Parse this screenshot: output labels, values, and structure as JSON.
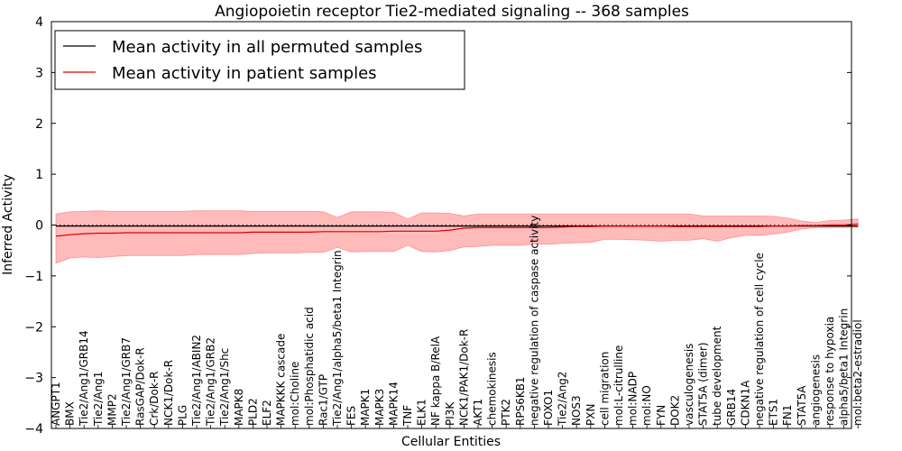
{
  "chart_data": {
    "type": "line",
    "title": "Angiopoietin receptor Tie2-mediated signaling -- 368 samples",
    "xlabel": "Cellular Entities",
    "ylabel": "Inferred Activity",
    "ylim": [
      -4,
      4
    ],
    "yticks": [
      "−4",
      "−3",
      "−2",
      "−1",
      "0",
      "1",
      "2",
      "3",
      "4"
    ],
    "grid": false,
    "legend_position": "top-left",
    "categories": [
      "ANGPT1",
      "BMX",
      "Tie2/Ang1/GRB14",
      "Tie2/Ang1",
      "MMP2",
      "Tie2/Ang1/GRB7",
      "RasGAP/Dok-R",
      "Crk/Dok-R",
      "NCK1/Dok-R",
      "PLG",
      "Tie2/Ang1/ABIN2",
      "Tie2/Ang1/GRB2",
      "Tie2/Ang1/Shc",
      "MAPK8",
      "PLD2",
      "ELF2",
      "MAPKKK cascade",
      "mol:Choline",
      "mol:Phosphatidic acid",
      "Rac1/GTP",
      "Tie2/Ang1/alpha5/beta1 Integrin",
      "FES",
      "MAPK1",
      "MAPK3",
      "MAPK14",
      "TNF",
      "ELK1",
      "NF kappa B/RelA",
      "PI3K",
      "NCK1/PAK1/Dok-R",
      "AKT1",
      "chemokinesis",
      "PTK2",
      "RPS6KB1",
      "negative regulation of caspase activity",
      "FOXO1",
      "Tie2/Ang2",
      "NOS3",
      "PXN",
      "cell migration",
      "mol:L-citrulline",
      "mol:NADP",
      "mol:NO",
      "FYN",
      "DOK2",
      "vasculogenesis",
      "STAT5A (dimer)",
      "tube development",
      "GRB14",
      "CDKN1A",
      "negative regulation of cell cycle",
      "ETS1",
      "FN1",
      "STAT5A",
      "angiogenesis",
      "response to hypoxia",
      "alpha5/beta1 Integrin",
      "mol:beta2-estradiol"
    ],
    "series": [
      {
        "name": "Mean activity in all permuted samples",
        "color": "#000000",
        "values": [
          -0.02,
          -0.02,
          -0.02,
          -0.02,
          -0.02,
          -0.02,
          -0.02,
          -0.02,
          -0.02,
          -0.02,
          -0.02,
          -0.02,
          -0.02,
          -0.02,
          -0.02,
          -0.02,
          -0.02,
          -0.02,
          -0.02,
          -0.02,
          -0.02,
          -0.02,
          -0.02,
          -0.02,
          -0.02,
          -0.02,
          -0.02,
          -0.02,
          -0.02,
          -0.02,
          -0.02,
          -0.02,
          -0.02,
          -0.02,
          -0.02,
          -0.02,
          -0.02,
          -0.02,
          -0.02,
          -0.02,
          -0.02,
          -0.02,
          -0.02,
          -0.02,
          -0.02,
          -0.02,
          -0.02,
          -0.02,
          -0.02,
          -0.02,
          -0.02,
          -0.02,
          -0.02,
          -0.02,
          -0.02,
          -0.02,
          -0.02,
          -0.02
        ]
      },
      {
        "name": "Mean activity in patient samples",
        "color": "#dd0000",
        "band_color": "#ff6666",
        "values": [
          -0.22,
          -0.19,
          -0.17,
          -0.16,
          -0.16,
          -0.15,
          -0.15,
          -0.15,
          -0.15,
          -0.15,
          -0.15,
          -0.15,
          -0.15,
          -0.15,
          -0.14,
          -0.14,
          -0.14,
          -0.14,
          -0.14,
          -0.13,
          -0.13,
          -0.13,
          -0.13,
          -0.13,
          -0.12,
          -0.12,
          -0.12,
          -0.12,
          -0.1,
          -0.06,
          -0.05,
          -0.05,
          -0.05,
          -0.05,
          -0.05,
          -0.05,
          -0.04,
          -0.03,
          -0.03,
          -0.02,
          -0.02,
          -0.02,
          -0.02,
          -0.02,
          -0.03,
          -0.03,
          -0.03,
          -0.03,
          -0.03,
          -0.03,
          -0.03,
          -0.02,
          -0.02,
          -0.01,
          -0.01,
          0.0,
          0.0,
          0.02
        ],
        "upper": [
          0.22,
          0.26,
          0.27,
          0.28,
          0.27,
          0.27,
          0.27,
          0.27,
          0.27,
          0.27,
          0.28,
          0.28,
          0.28,
          0.28,
          0.27,
          0.27,
          0.27,
          0.27,
          0.27,
          0.26,
          0.15,
          0.26,
          0.26,
          0.26,
          0.25,
          0.12,
          0.24,
          0.24,
          0.23,
          0.18,
          0.22,
          0.22,
          0.22,
          0.22,
          0.22,
          0.22,
          0.22,
          0.22,
          0.22,
          0.22,
          0.22,
          0.22,
          0.22,
          0.22,
          0.22,
          0.22,
          0.18,
          0.18,
          0.18,
          0.18,
          0.18,
          0.17,
          0.14,
          0.08,
          0.05,
          0.09,
          0.1,
          0.12
        ],
        "lower": [
          -0.75,
          -0.65,
          -0.63,
          -0.64,
          -0.62,
          -0.6,
          -0.6,
          -0.6,
          -0.6,
          -0.6,
          -0.58,
          -0.58,
          -0.58,
          -0.58,
          -0.56,
          -0.55,
          -0.55,
          -0.55,
          -0.54,
          -0.54,
          -0.44,
          -0.53,
          -0.52,
          -0.52,
          -0.52,
          -0.4,
          -0.52,
          -0.53,
          -0.5,
          -0.43,
          -0.42,
          -0.4,
          -0.4,
          -0.4,
          -0.38,
          -0.38,
          -0.36,
          -0.35,
          -0.34,
          -0.28,
          -0.28,
          -0.29,
          -0.3,
          -0.32,
          -0.3,
          -0.3,
          -0.27,
          -0.32,
          -0.25,
          -0.2,
          -0.2,
          -0.18,
          -0.14,
          -0.08,
          -0.05,
          -0.05,
          -0.05,
          -0.04
        ]
      }
    ]
  }
}
